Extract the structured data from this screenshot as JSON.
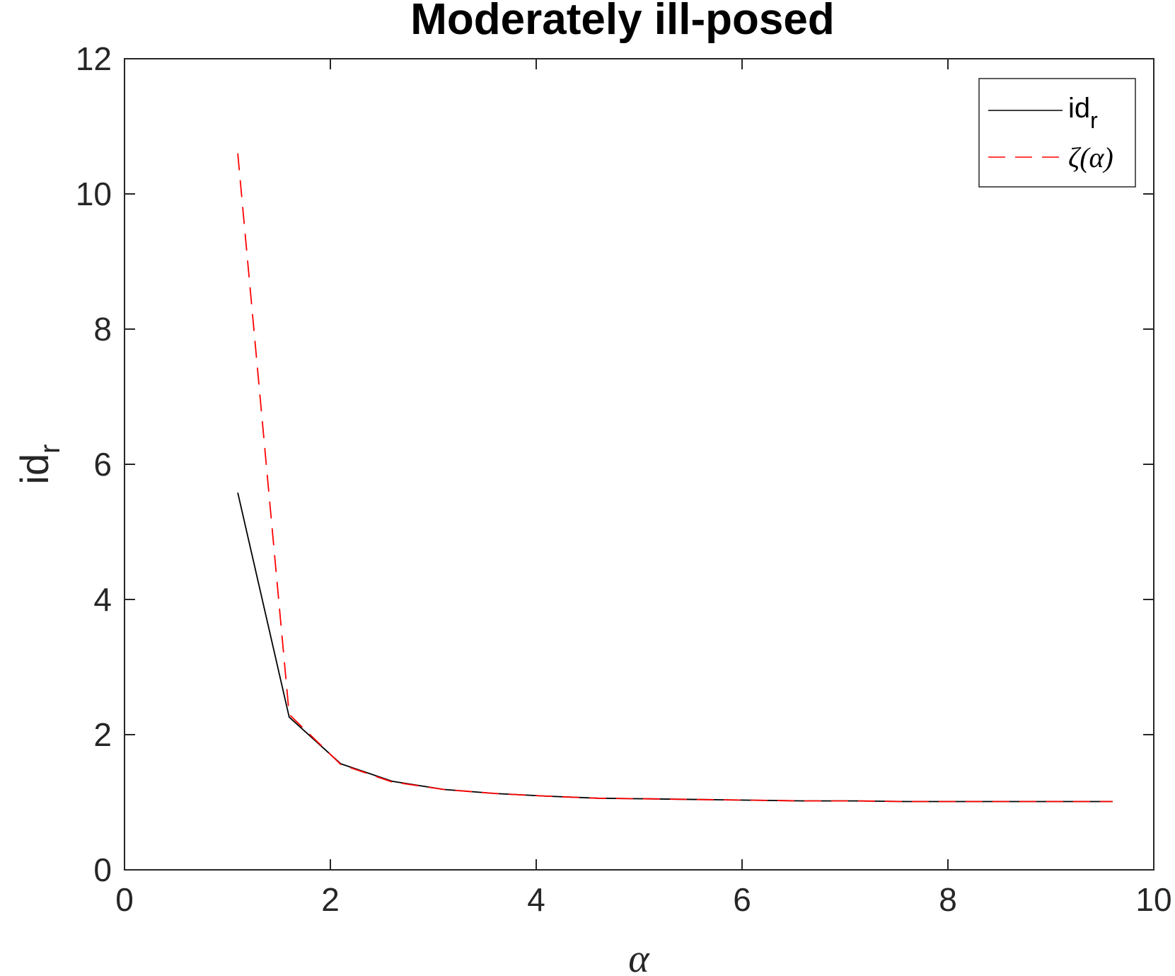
{
  "chart_data": {
    "type": "line",
    "title": "Moderately ill-posed",
    "xlabel": "α",
    "ylabel": "id",
    "ylabel_sub": "r",
    "xlim": [
      0,
      10
    ],
    "ylim": [
      0,
      12
    ],
    "xticks": [
      0,
      2,
      4,
      6,
      8,
      10
    ],
    "yticks": [
      0,
      2,
      4,
      6,
      8,
      10,
      12
    ],
    "grid": false,
    "legend_position": "top-right",
    "series": [
      {
        "name": "id",
        "name_sub": "r",
        "color": "#000000",
        "style": "solid",
        "x": [
          1.1,
          1.6,
          2.1,
          2.6,
          3.1,
          3.6,
          4.1,
          4.6,
          5.1,
          5.6,
          6.1,
          6.6,
          7.1,
          7.6,
          8.1,
          8.6,
          9.1,
          9.6
        ],
        "y": [
          5.58,
          2.26,
          1.57,
          1.31,
          1.19,
          1.13,
          1.09,
          1.06,
          1.05,
          1.04,
          1.03,
          1.02,
          1.02,
          1.01,
          1.01,
          1.01,
          1.01,
          1.01
        ]
      },
      {
        "name": "ζ(α)",
        "color": "#ff0000",
        "style": "dashed",
        "x": [
          1.1,
          1.6,
          2.1,
          2.6,
          3.1,
          3.6,
          4.1,
          4.6,
          5.1,
          5.6,
          6.1,
          6.6,
          7.1,
          7.6,
          8.1,
          8.6,
          9.1,
          9.6
        ],
        "y": [
          10.6,
          2.3,
          1.56,
          1.3,
          1.19,
          1.13,
          1.09,
          1.06,
          1.05,
          1.04,
          1.03,
          1.02,
          1.02,
          1.01,
          1.01,
          1.01,
          1.01,
          1.01
        ]
      }
    ]
  }
}
